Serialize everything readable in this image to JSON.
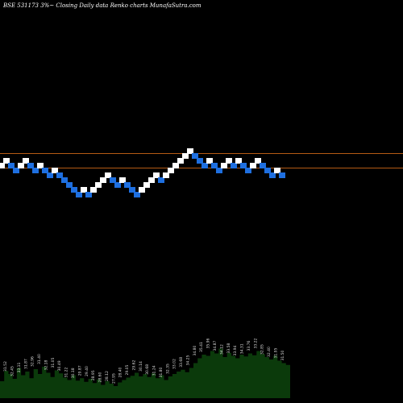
{
  "header": {
    "caption": "BSE 531173 3%~ Closing Daily data Renko charts MunafaSutra.com"
  },
  "colors": {
    "background": "#000000",
    "up_brick": "#ffffff",
    "down_brick": "#1e6fe0",
    "reference_line": "#b45a14",
    "volume_fill": "#0b3a0b",
    "label_text": "#dddddd"
  },
  "chart_data": {
    "type": "renko",
    "title": "BSE 531173 3%~ Closing Daily data Renko charts MunafaSutra.com",
    "brick_size_percent": 3,
    "bricks": [
      {
        "level": 33,
        "dir": "up"
      },
      {
        "level": 34,
        "dir": "up"
      },
      {
        "level": 33,
        "dir": "down"
      },
      {
        "level": 32,
        "dir": "down"
      },
      {
        "level": 33,
        "dir": "up"
      },
      {
        "level": 34,
        "dir": "up"
      },
      {
        "level": 33,
        "dir": "down"
      },
      {
        "level": 32,
        "dir": "down"
      },
      {
        "level": 33,
        "dir": "up"
      },
      {
        "level": 32,
        "dir": "down"
      },
      {
        "level": 31,
        "dir": "down"
      },
      {
        "level": 32,
        "dir": "up"
      },
      {
        "level": 31,
        "dir": "down"
      },
      {
        "level": 30,
        "dir": "down"
      },
      {
        "level": 29,
        "dir": "down"
      },
      {
        "level": 28,
        "dir": "down"
      },
      {
        "level": 27,
        "dir": "down"
      },
      {
        "level": 28,
        "dir": "up"
      },
      {
        "level": 27,
        "dir": "down"
      },
      {
        "level": 28,
        "dir": "up"
      },
      {
        "level": 29,
        "dir": "up"
      },
      {
        "level": 30,
        "dir": "up"
      },
      {
        "level": 31,
        "dir": "up"
      },
      {
        "level": 30,
        "dir": "down"
      },
      {
        "level": 29,
        "dir": "down"
      },
      {
        "level": 30,
        "dir": "up"
      },
      {
        "level": 29,
        "dir": "down"
      },
      {
        "level": 28,
        "dir": "down"
      },
      {
        "level": 27,
        "dir": "down"
      },
      {
        "level": 28,
        "dir": "up"
      },
      {
        "level": 29,
        "dir": "up"
      },
      {
        "level": 30,
        "dir": "up"
      },
      {
        "level": 31,
        "dir": "up"
      },
      {
        "level": 30,
        "dir": "down"
      },
      {
        "level": 31,
        "dir": "up"
      },
      {
        "level": 32,
        "dir": "up"
      },
      {
        "level": 33,
        "dir": "up"
      },
      {
        "level": 34,
        "dir": "up"
      },
      {
        "level": 35,
        "dir": "up"
      },
      {
        "level": 36,
        "dir": "up"
      },
      {
        "level": 35,
        "dir": "down"
      },
      {
        "level": 34,
        "dir": "down"
      },
      {
        "level": 33,
        "dir": "down"
      },
      {
        "level": 34,
        "dir": "up"
      },
      {
        "level": 33,
        "dir": "down"
      },
      {
        "level": 32,
        "dir": "down"
      },
      {
        "level": 33,
        "dir": "up"
      },
      {
        "level": 34,
        "dir": "up"
      },
      {
        "level": 33,
        "dir": "down"
      },
      {
        "level": 34,
        "dir": "up"
      },
      {
        "level": 33,
        "dir": "down"
      },
      {
        "level": 32,
        "dir": "down"
      },
      {
        "level": 33,
        "dir": "up"
      },
      {
        "level": 34,
        "dir": "up"
      },
      {
        "level": 33,
        "dir": "down"
      },
      {
        "level": 32,
        "dir": "down"
      },
      {
        "level": 31,
        "dir": "down"
      },
      {
        "level": 32,
        "dir": "up"
      },
      {
        "level": 31,
        "dir": "down"
      }
    ],
    "reference_levels": [
      35.5,
      32.5
    ],
    "volume": [
      0.28,
      0.45,
      0.4,
      0.32,
      0.5,
      0.38,
      0.44,
      0.33,
      0.48,
      0.4,
      0.52,
      0.42,
      0.35,
      0.46,
      0.41,
      0.34,
      0.3,
      0.38,
      0.29,
      0.33,
      0.27,
      0.32,
      0.25,
      0.31,
      0.22,
      0.28,
      0.24,
      0.2,
      0.26,
      0.3,
      0.34,
      0.37,
      0.42,
      0.36,
      0.4,
      0.35,
      0.41,
      0.33,
      0.38,
      0.3,
      0.36,
      0.4,
      0.44,
      0.47,
      0.43,
      0.5,
      0.58,
      0.66,
      0.72,
      0.7,
      0.78,
      0.74,
      0.82,
      0.68,
      0.75,
      0.7,
      0.66,
      0.72,
      0.69,
      0.74,
      0.71,
      0.78,
      0.73,
      0.68,
      0.64,
      0.7,
      0.62,
      0.58,
      0.55,
      0.49
    ],
    "volume_labels": [
      "31.52",
      "32.45",
      "33.11",
      "31.87",
      "32.96",
      "31.40",
      "32.18",
      "31.05",
      "30.49",
      "31.22",
      "30.18",
      "29.87",
      "29.40",
      "28.95",
      "28.60",
      "28.12",
      "27.95",
      "28.40",
      "29.05",
      "29.62",
      "30.14",
      "30.68",
      "31.24",
      "31.80",
      "32.35",
      "33.02",
      "33.68",
      "34.25",
      "34.80",
      "35.41",
      "35.96",
      "34.87",
      "34.12",
      "33.58",
      "33.94",
      "34.31",
      "33.76",
      "33.22",
      "32.85",
      "32.40",
      "31.95",
      "31.50"
    ]
  }
}
